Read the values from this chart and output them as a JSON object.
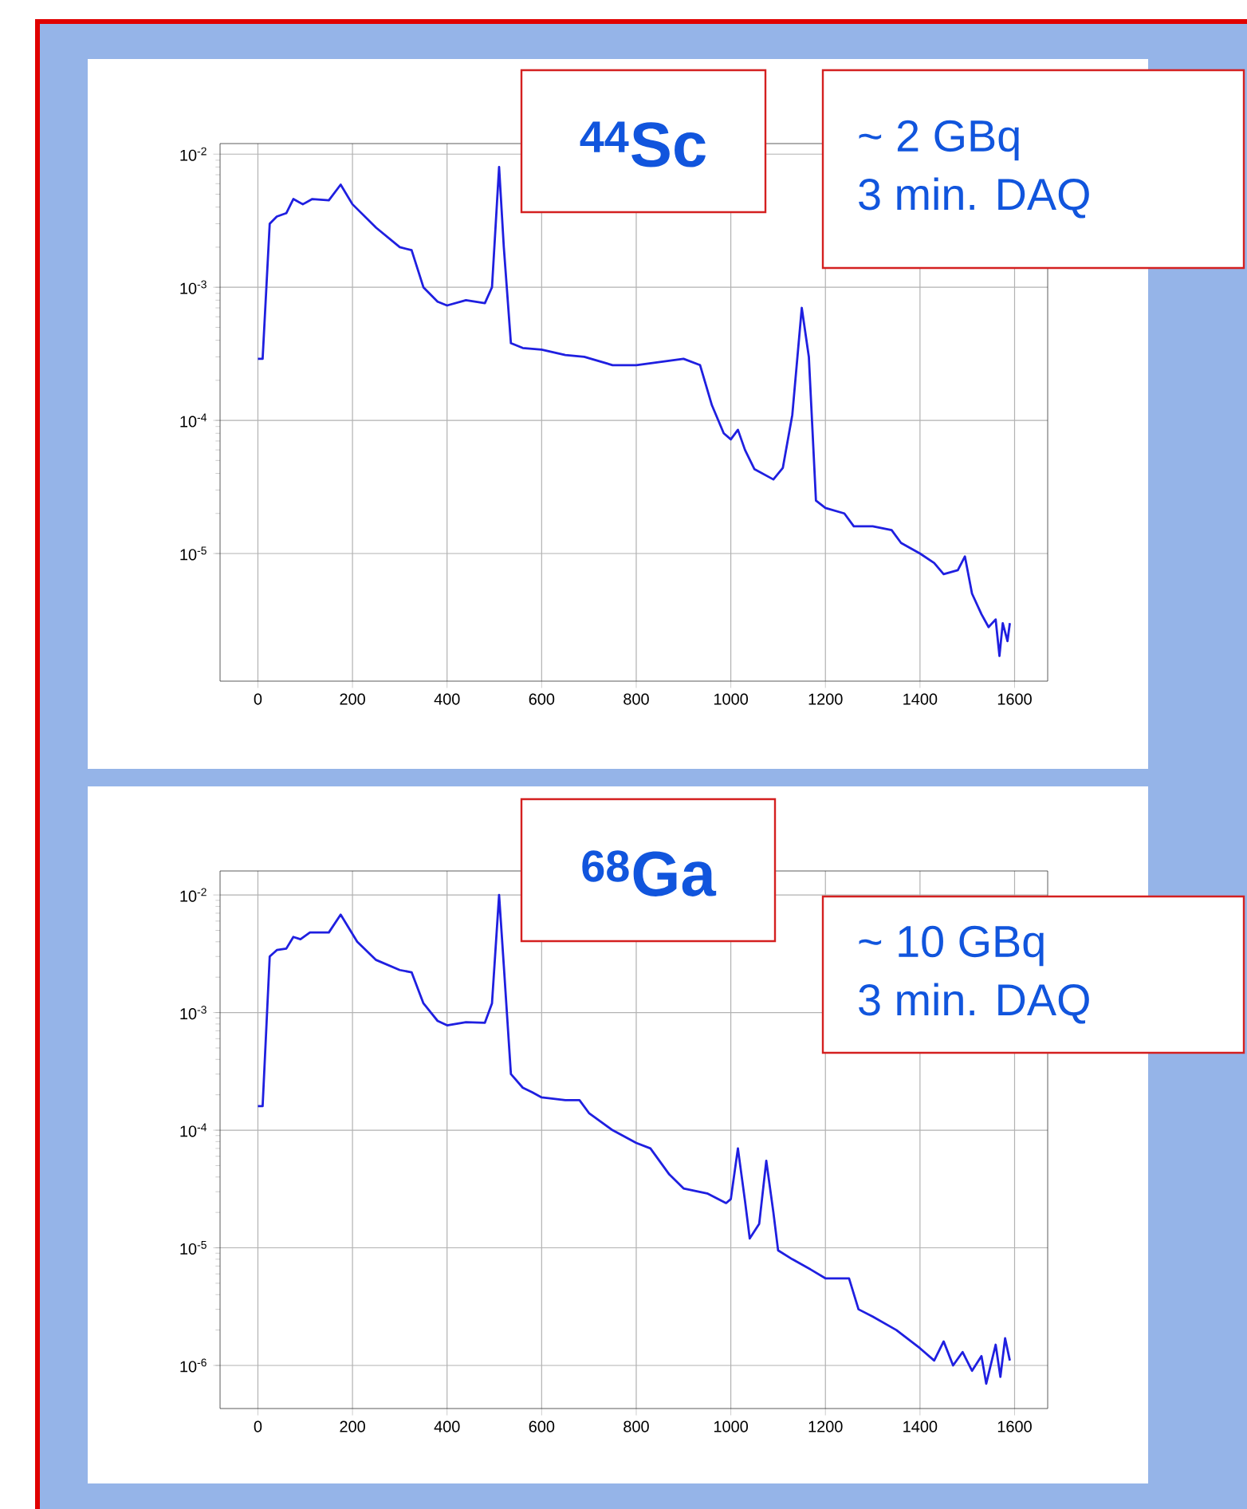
{
  "chart_data": [
    {
      "type": "line",
      "title": "$^{44}$Sc",
      "annotations": [
        "~ 2 GBq",
        "3 min. DAQ"
      ],
      "color": "#1f1fe0",
      "log": "y",
      "grid": true,
      "xlim": [
        -80,
        1670
      ],
      "ylim": [
        1.1e-06,
        0.012
      ],
      "xticks": [
        0,
        200,
        400,
        600,
        800,
        1000,
        1200,
        1400,
        1600
      ],
      "yticks": [
        {
          "value": 1e-05,
          "label": "10$^{-5}$"
        },
        {
          "value": 0.0001,
          "label": "10$^{-4}$"
        },
        {
          "value": 0.001,
          "label": "10$^{-3}$"
        },
        {
          "value": 0.01,
          "label": "10$^{-2}$"
        }
      ],
      "x": [
        0,
        10,
        25,
        40,
        60,
        75,
        95,
        115,
        150,
        175,
        200,
        250,
        300,
        325,
        350,
        380,
        400,
        440,
        480,
        495,
        510,
        520,
        535,
        560,
        600,
        650,
        690,
        750,
        800,
        900,
        935,
        960,
        985,
        1000,
        1015,
        1030,
        1050,
        1090,
        1110,
        1130,
        1150,
        1165,
        1180,
        1200,
        1240,
        1260,
        1300,
        1340,
        1360,
        1400,
        1430,
        1450,
        1480,
        1495,
        1510,
        1530,
        1545,
        1560,
        1568,
        1575,
        1585,
        1590
      ],
      "values": [
        0.00029,
        0.00029,
        0.003,
        0.0034,
        0.0036,
        0.0046,
        0.0042,
        0.0046,
        0.0045,
        0.0059,
        0.0042,
        0.0028,
        0.002,
        0.0019,
        0.001,
        0.00078,
        0.00073,
        0.0008,
        0.00076,
        0.001,
        0.008,
        0.002,
        0.00038,
        0.00035,
        0.00034,
        0.00031,
        0.0003,
        0.00026,
        0.00026,
        0.00029,
        0.00026,
        0.00013,
        8e-05,
        7.2e-05,
        8.5e-05,
        6e-05,
        4.3e-05,
        3.6e-05,
        4.4e-05,
        0.00011,
        0.0007,
        0.0003,
        2.5e-05,
        2.2e-05,
        2e-05,
        1.6e-05,
        1.6e-05,
        1.5e-05,
        1.2e-05,
        1e-05,
        8.5e-06,
        7e-06,
        7.5e-06,
        9.5e-06,
        5e-06,
        3.5e-06,
        2.8e-06,
        3.2e-06,
        1.7e-06,
        3e-06,
        2.2e-06,
        3e-06
      ]
    },
    {
      "type": "line",
      "title": "$^{68}$Ga",
      "annotations": [
        "~ 10 GBq",
        "3 min. DAQ"
      ],
      "color": "#1f1fe0",
      "log": "y",
      "grid": true,
      "xlim": [
        -80,
        1670
      ],
      "ylim": [
        4.3e-07,
        0.016
      ],
      "xticks": [
        0,
        200,
        400,
        600,
        800,
        1000,
        1200,
        1400,
        1600
      ],
      "yticks": [
        {
          "value": 1e-06,
          "label": "10$^{-6}$"
        },
        {
          "value": 1e-05,
          "label": "10$^{-5}$"
        },
        {
          "value": 0.0001,
          "label": "10$^{-4}$"
        },
        {
          "value": 0.001,
          "label": "10$^{-3}$"
        },
        {
          "value": 0.01,
          "label": "10$^{-2}$"
        }
      ],
      "x": [
        0,
        10,
        25,
        40,
        60,
        75,
        90,
        110,
        150,
        175,
        210,
        250,
        300,
        325,
        350,
        380,
        400,
        440,
        480,
        495,
        510,
        520,
        535,
        560,
        580,
        600,
        650,
        680,
        700,
        750,
        800,
        830,
        870,
        900,
        950,
        990,
        1000,
        1015,
        1030,
        1040,
        1060,
        1075,
        1090,
        1100,
        1130,
        1170,
        1200,
        1250,
        1270,
        1300,
        1350,
        1400,
        1430,
        1450,
        1470,
        1490,
        1510,
        1530,
        1540,
        1560,
        1570,
        1580,
        1590
      ],
      "values": [
        0.00016,
        0.00016,
        0.003,
        0.0034,
        0.0035,
        0.0044,
        0.0042,
        0.0048,
        0.0048,
        0.0068,
        0.004,
        0.0028,
        0.0023,
        0.0022,
        0.0012,
        0.00085,
        0.00078,
        0.00083,
        0.00082,
        0.0012,
        0.01,
        0.0025,
        0.0003,
        0.00023,
        0.00021,
        0.00019,
        0.00018,
        0.00018,
        0.00014,
        0.0001,
        7.8e-05,
        7e-05,
        4.2e-05,
        3.2e-05,
        2.9e-05,
        2.4e-05,
        2.6e-05,
        7e-05,
        2.5e-05,
        1.2e-05,
        1.6e-05,
        5.5e-05,
        2e-05,
        9.5e-06,
        8e-06,
        6.5e-06,
        5.5e-06,
        5.5e-06,
        3e-06,
        2.6e-06,
        2e-06,
        1.4e-06,
        1.1e-06,
        1.6e-06,
        1e-06,
        1.3e-06,
        9e-07,
        1.2e-06,
        7e-07,
        1.5e-06,
        8e-07,
        1.7e-06,
        1.1e-06
      ]
    }
  ]
}
